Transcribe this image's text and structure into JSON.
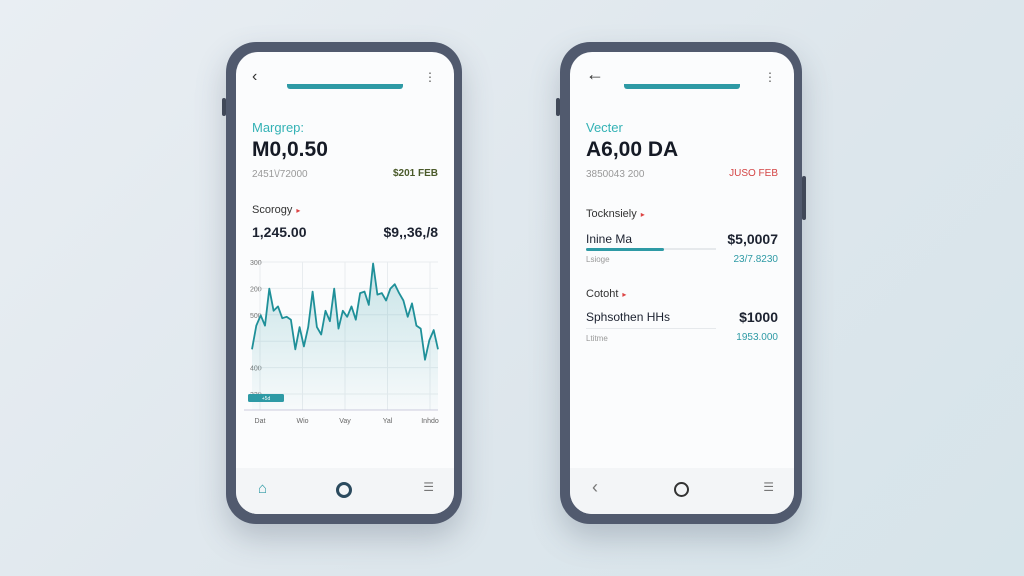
{
  "phone1": {
    "title": "Margrep:",
    "amount": "M0,0.50",
    "sub_left": "2451\\/72000",
    "sub_right": "$201 FEB",
    "section": "Scorogy",
    "row_left": "1,245.00",
    "row_right": "$9,,36,/8",
    "nav": [
      "home-icon",
      "shield-icon",
      "list-icon"
    ]
  },
  "phone2": {
    "title": "Vecter",
    "amount": "A6,00 DA",
    "sub_left": "3850043 200",
    "sub_right": "JUSO FEB",
    "sections": [
      {
        "title": "Tocknsiely",
        "item": "Inine Ma",
        "value": "$5,0007",
        "sub": "Lsioge",
        "subvalue": "23/7.8230",
        "progress": 0.6
      },
      {
        "title": "Cotoht",
        "item": "Sphsothen HHs",
        "value": "$1000",
        "sub": "Ltitme",
        "subvalue": "1953.000"
      }
    ],
    "nav": [
      "back-icon",
      "clock-icon",
      "list-icon"
    ]
  },
  "colors": {
    "accent": "#2e9aa5",
    "negative": "#d44444",
    "frame": "#515a6e"
  },
  "chart_data": {
    "type": "area",
    "y_tick_labels": [
      "300",
      "200",
      "500",
      "",
      "400",
      "330"
    ],
    "x_tick_labels": [
      "Dat",
      "Wio",
      "Vay",
      "Yal",
      "Inhdo"
    ],
    "legend": "+5d",
    "grid": true,
    "ylim": [
      0,
      100
    ],
    "values": [
      41,
      57,
      64,
      57,
      82,
      67,
      70,
      62,
      63,
      61,
      41,
      56,
      43,
      56,
      80,
      56,
      51,
      67,
      60,
      82,
      55,
      67,
      63,
      70,
      61,
      79,
      80,
      71,
      99,
      78,
      79,
      74,
      82,
      85,
      79,
      74,
      63,
      72,
      57,
      55,
      34,
      47,
      54,
      41
    ]
  }
}
